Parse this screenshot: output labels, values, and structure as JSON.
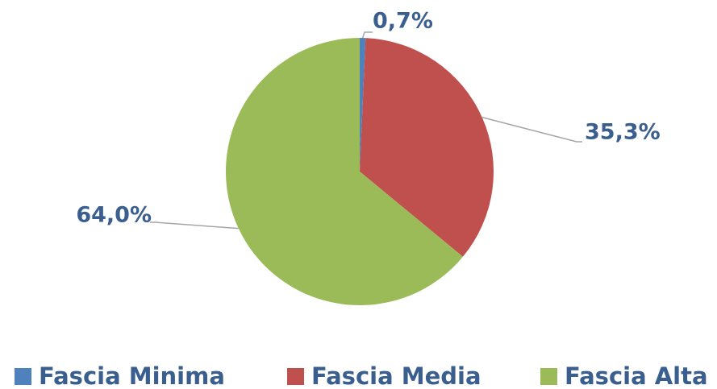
{
  "chart_data": {
    "type": "pie",
    "categories": [
      "Fascia Minima",
      "Fascia Media",
      "Fascia Alta"
    ],
    "values": [
      0.7,
      35.3,
      64.0
    ],
    "value_labels": [
      "0,7%",
      "35,3%",
      "64,0%"
    ],
    "colors": [
      "#4f81bd",
      "#c0504d",
      "#9bbb59"
    ],
    "legend": "bottom"
  }
}
